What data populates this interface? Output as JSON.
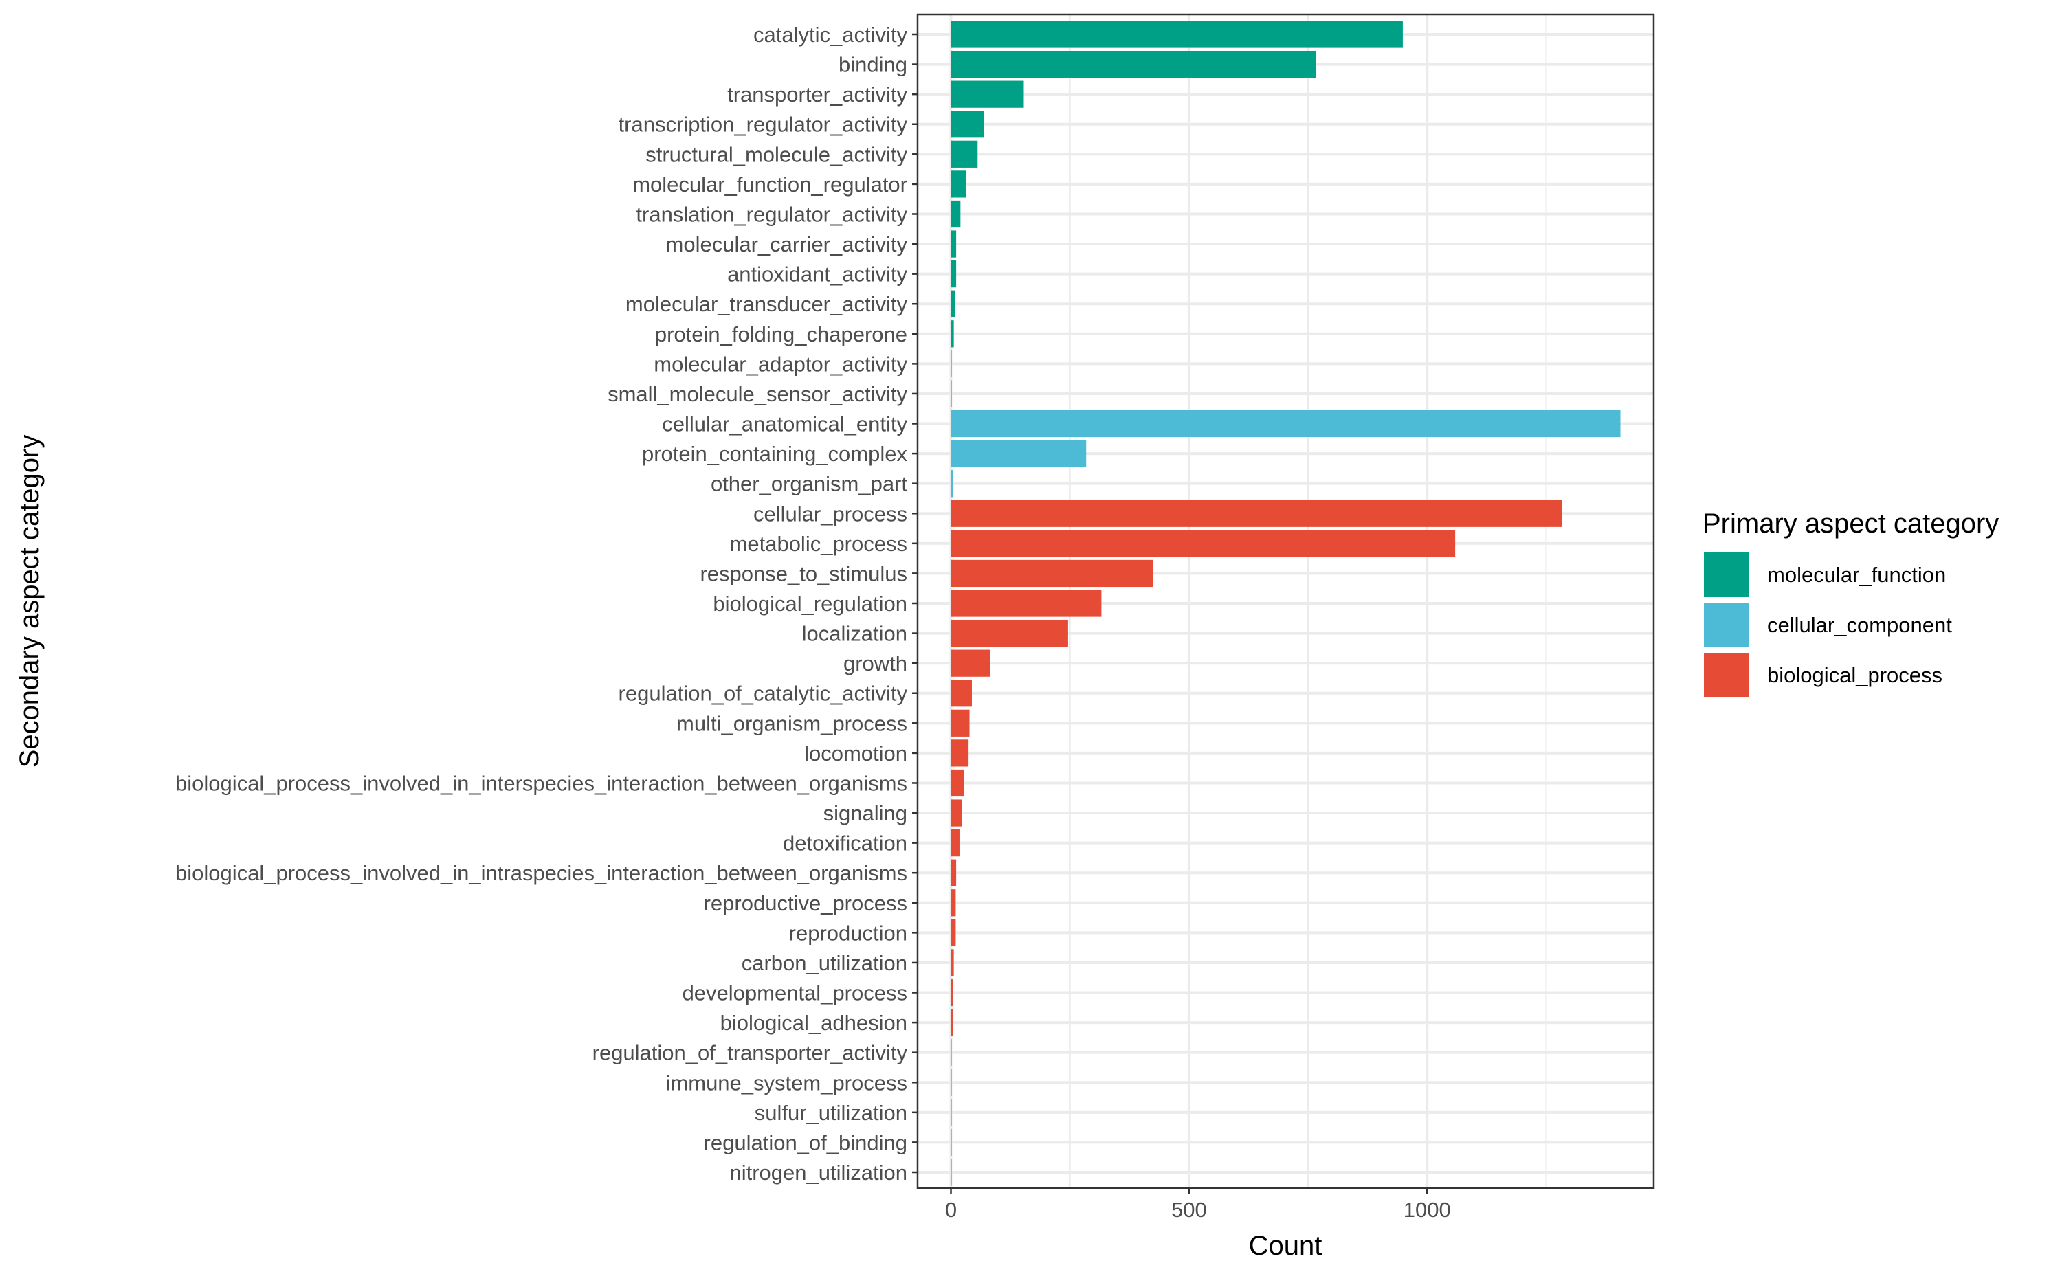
{
  "chart_data": {
    "type": "bar",
    "orientation": "horizontal",
    "title": "",
    "xlabel": "Count",
    "ylabel": "Secondary aspect category",
    "xlim": [
      -70,
      1476
    ],
    "xticks": [
      0,
      500,
      1000
    ],
    "grid": true,
    "legend": {
      "title": "Primary aspect category",
      "placement": "right",
      "entries": [
        {
          "name": "molecular_function",
          "color": "#00A087"
        },
        {
          "name": "cellular_component",
          "color": "#4DBBD5"
        },
        {
          "name": "biological_process",
          "color": "#E64B35"
        }
      ]
    },
    "categories": [
      "catalytic_activity",
      "binding",
      "transporter_activity",
      "transcription_regulator_activity",
      "structural_molecule_activity",
      "molecular_function_regulator",
      "translation_regulator_activity",
      "molecular_carrier_activity",
      "antioxidant_activity",
      "molecular_transducer_activity",
      "protein_folding_chaperone",
      "molecular_adaptor_activity",
      "small_molecule_sensor_activity",
      "cellular_anatomical_entity",
      "protein_containing_complex",
      "other_organism_part",
      "cellular_process",
      "metabolic_process",
      "response_to_stimulus",
      "biological_regulation",
      "localization",
      "growth",
      "regulation_of_catalytic_activity",
      "multi_organism_process",
      "locomotion",
      "biological_process_involved_in_interspecies_interaction_between_organisms",
      "signaling",
      "detoxification",
      "biological_process_involved_in_intraspecies_interaction_between_organisms",
      "reproductive_process",
      "reproduction",
      "carbon_utilization",
      "developmental_process",
      "biological_adhesion",
      "regulation_of_transporter_activity",
      "immune_system_process",
      "sulfur_utilization",
      "regulation_of_binding",
      "nitrogen_utilization"
    ],
    "groups": [
      "molecular_function",
      "molecular_function",
      "molecular_function",
      "molecular_function",
      "molecular_function",
      "molecular_function",
      "molecular_function",
      "molecular_function",
      "molecular_function",
      "molecular_function",
      "molecular_function",
      "molecular_function",
      "molecular_function",
      "cellular_component",
      "cellular_component",
      "cellular_component",
      "biological_process",
      "biological_process",
      "biological_process",
      "biological_process",
      "biological_process",
      "biological_process",
      "biological_process",
      "biological_process",
      "biological_process",
      "biological_process",
      "biological_process",
      "biological_process",
      "biological_process",
      "biological_process",
      "biological_process",
      "biological_process",
      "biological_process",
      "biological_process",
      "biological_process",
      "biological_process",
      "biological_process",
      "biological_process",
      "biological_process"
    ],
    "values": [
      949,
      767,
      153,
      70,
      56,
      32,
      20,
      11,
      11,
      8,
      6,
      1,
      1,
      1406,
      284,
      4,
      1284,
      1059,
      424,
      316,
      246,
      82,
      44,
      39,
      37,
      27,
      23,
      18,
      11,
      10,
      10,
      6,
      4,
      4,
      1,
      1,
      1,
      1,
      1
    ]
  }
}
